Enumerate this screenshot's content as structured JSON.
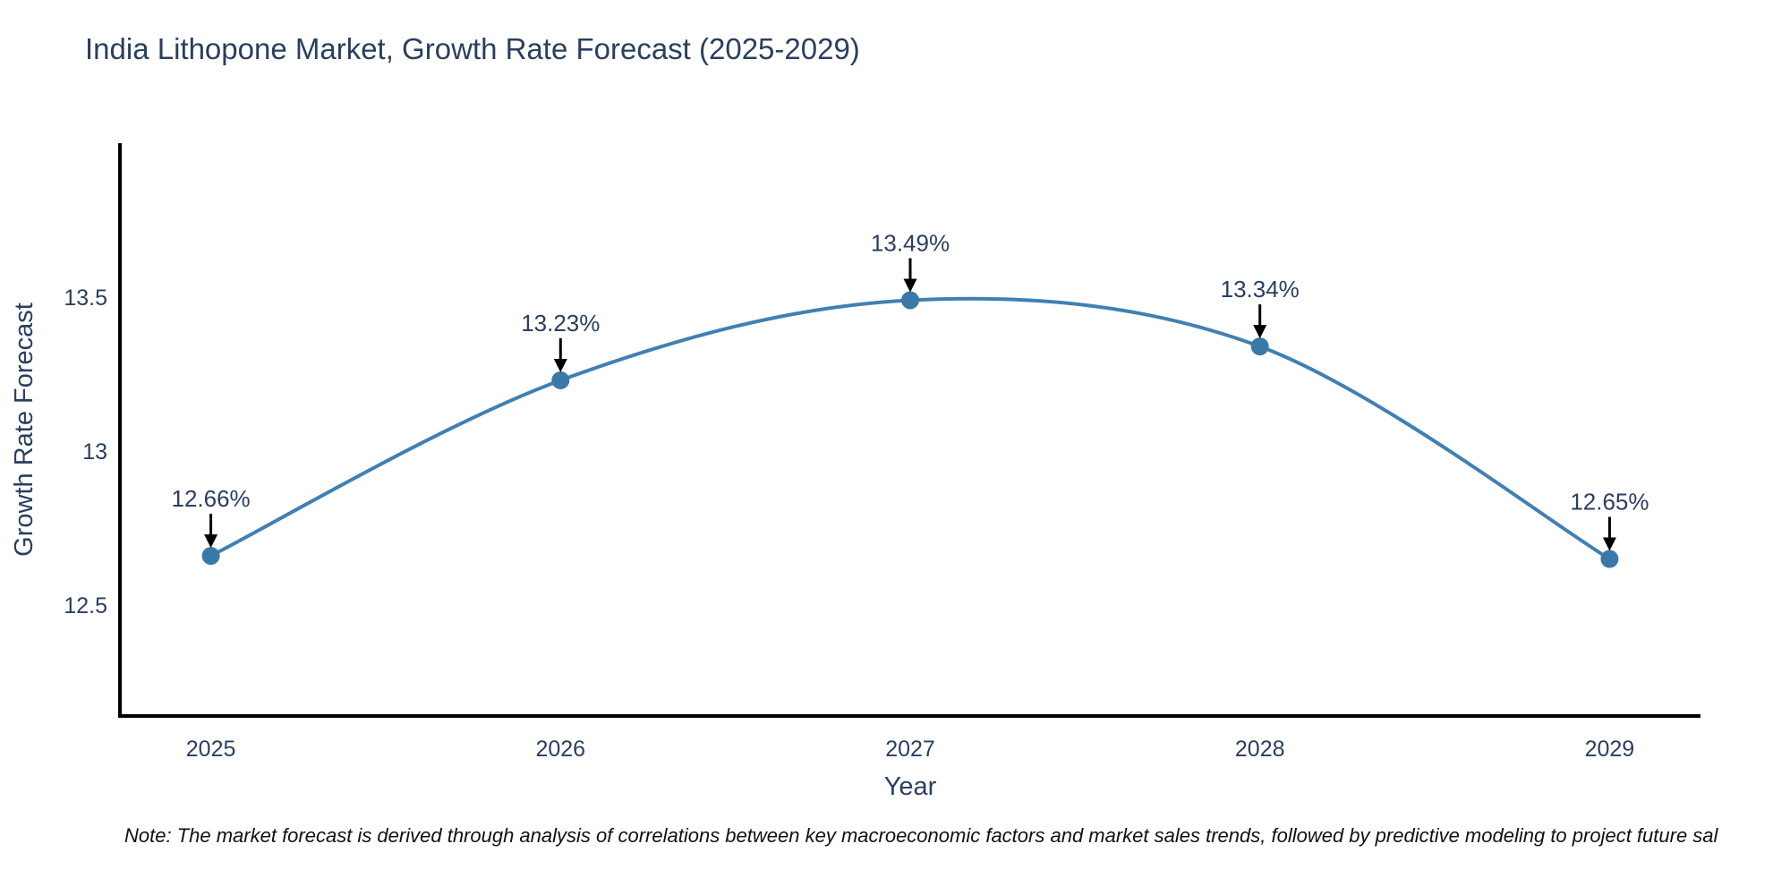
{
  "chart": {
    "note": "Note: The market forecast is derived through analysis of correlations between key macroeconomic factors and market sales trends, followed by predictive modeling to project future sal"
  },
  "chart_data": {
    "type": "line",
    "title": "India Lithopone Market, Growth Rate Forecast (2025-2029)",
    "xlabel": "Year",
    "ylabel": "Growth Rate Forecast",
    "x": [
      2025,
      2026,
      2027,
      2028,
      2029
    ],
    "values": [
      12.66,
      13.23,
      13.49,
      13.34,
      12.65
    ],
    "point_labels": [
      "12.66%",
      "13.23%",
      "13.49%",
      "13.34%",
      "12.65%"
    ],
    "xticks": [
      "2025",
      "2026",
      "2027",
      "2028",
      "2029"
    ],
    "yticks": [
      "12.5",
      "13",
      "13.5"
    ],
    "ytick_values": [
      12.5,
      13.0,
      13.5
    ],
    "xlim": [
      2024.74,
      2029.26
    ],
    "ylim": [
      12.14,
      14.0
    ],
    "line_shape": "spline",
    "markers": true,
    "grid": false,
    "legend": "none",
    "colors": {
      "line": "#4080b2",
      "marker": "#3a78a8",
      "axis": "#000000",
      "text": "#2a3f5f",
      "annotation_arrow": "#000000",
      "note_text": "#101116",
      "background": "#ffffff"
    }
  }
}
